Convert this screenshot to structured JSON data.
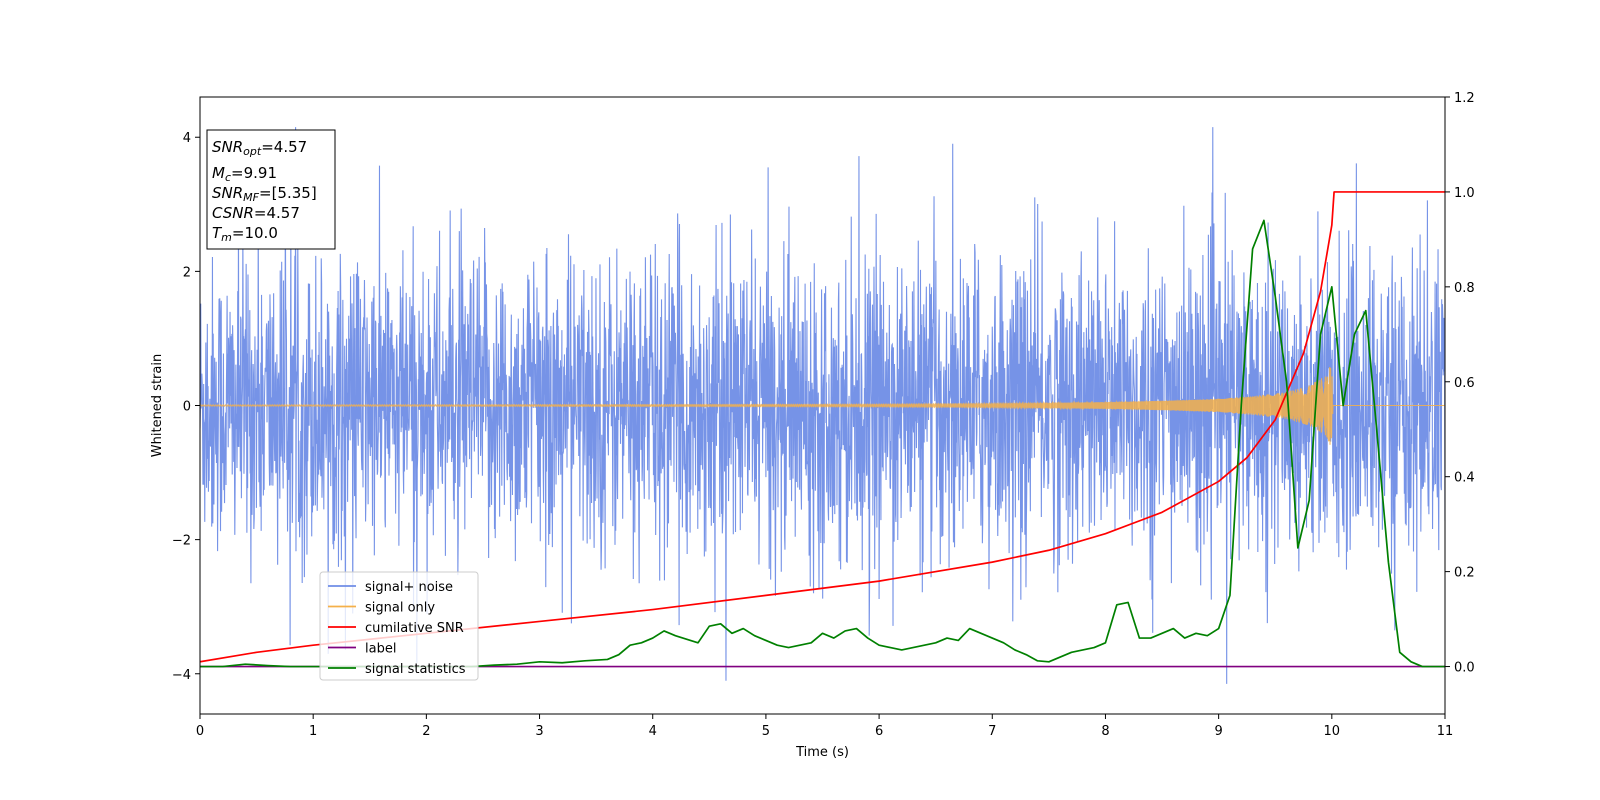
{
  "chart_data": {
    "type": "line",
    "xlabel": "Time (s)",
    "ylabel": "Whitened strain",
    "xlim": [
      0,
      11
    ],
    "ylim": [
      -4.6,
      4.6
    ],
    "y2lim": [
      -0.1,
      1.2
    ],
    "grid": false,
    "x_ticks": [
      "0",
      "1",
      "2",
      "3",
      "4",
      "5",
      "6",
      "7",
      "8",
      "9",
      "10",
      "11"
    ],
    "y_ticks": [
      "−4",
      "−2",
      "0",
      "2",
      "4"
    ],
    "y2_ticks": [
      "0.0",
      "0.2",
      "0.4",
      "0.6",
      "0.8",
      "1.0",
      "1.2"
    ],
    "legend_position": "lower-left",
    "annotation": {
      "lines": [
        {
          "sym": "SNR",
          "sub": "opt",
          "val": "=4.57"
        },
        {
          "sym": "M",
          "sub": "c",
          "val": "=9.91"
        },
        {
          "sym": "SNR",
          "sub": "MF",
          "val": "=[5.35]"
        },
        {
          "sym": "CSNR",
          "sub": "",
          "val": "=4.57"
        },
        {
          "sym": "T",
          "sub": "m",
          "val": "=10.0"
        }
      ]
    },
    "series": [
      {
        "name": "signal+ noise",
        "axis": "left",
        "color": "#6f8de6",
        "kind": "noise",
        "envelope": {
          "x": [
            0,
            11
          ],
          "typical_amplitude": 2.6,
          "min": -4.15,
          "max": 4.15
        }
      },
      {
        "name": "signal only",
        "axis": "left",
        "color": "#f5b04a",
        "kind": "chirp",
        "amplitude_envelope": {
          "x": [
            0,
            2,
            4,
            6,
            7,
            8,
            8.5,
            9,
            9.3,
            9.6,
            9.8,
            9.95,
            10.0,
            10.01
          ],
          "y": [
            0.01,
            0.012,
            0.015,
            0.02,
            0.03,
            0.05,
            0.07,
            0.1,
            0.14,
            0.2,
            0.3,
            0.45,
            0.65,
            0
          ]
        }
      },
      {
        "name": "cumilative SNR",
        "axis": "right",
        "color": "#ff0000",
        "x": [
          0,
          0.5,
          1,
          2,
          3,
          4,
          5,
          6,
          7,
          7.5,
          8,
          8.5,
          9,
          9.25,
          9.5,
          9.75,
          9.9,
          10.0,
          10.02,
          11
        ],
        "y": [
          0.01,
          0.03,
          0.045,
          0.07,
          0.095,
          0.12,
          0.15,
          0.18,
          0.22,
          0.245,
          0.28,
          0.325,
          0.39,
          0.44,
          0.52,
          0.66,
          0.79,
          0.93,
          1.0,
          1.0
        ]
      },
      {
        "name": "label",
        "axis": "right",
        "color": "#800080",
        "x": [
          0,
          11
        ],
        "y": [
          0,
          0
        ]
      },
      {
        "name": "signal statistics",
        "axis": "right",
        "color": "#008000",
        "x": [
          0,
          0.2,
          0.4,
          0.6,
          0.8,
          1.0,
          1.2,
          1.5,
          1.8,
          2.0,
          2.2,
          2.4,
          2.6,
          2.8,
          3.0,
          3.2,
          3.4,
          3.6,
          3.7,
          3.8,
          3.9,
          4.0,
          4.1,
          4.2,
          4.4,
          4.5,
          4.6,
          4.7,
          4.8,
          4.9,
          5.0,
          5.1,
          5.2,
          5.3,
          5.4,
          5.5,
          5.6,
          5.7,
          5.8,
          5.9,
          6.0,
          6.1,
          6.2,
          6.3,
          6.4,
          6.5,
          6.6,
          6.7,
          6.8,
          6.9,
          7.0,
          7.1,
          7.2,
          7.3,
          7.4,
          7.5,
          7.6,
          7.7,
          7.8,
          7.9,
          8.0,
          8.1,
          8.2,
          8.3,
          8.4,
          8.5,
          8.6,
          8.7,
          8.8,
          8.9,
          9.0,
          9.1,
          9.2,
          9.3,
          9.4,
          9.5,
          9.6,
          9.7,
          9.8,
          9.9,
          10.0,
          10.1,
          10.2,
          10.3,
          10.4,
          10.5,
          10.6,
          10.7,
          10.8,
          10.9,
          11.0
        ],
        "y": [
          0.0,
          0.0,
          0.005,
          0.002,
          0.0,
          0.0,
          0.0,
          0.0,
          0.0,
          0.0,
          0.0,
          0.0,
          0.003,
          0.005,
          0.01,
          0.008,
          0.012,
          0.015,
          0.025,
          0.045,
          0.05,
          0.06,
          0.075,
          0.065,
          0.05,
          0.085,
          0.09,
          0.07,
          0.08,
          0.065,
          0.055,
          0.045,
          0.04,
          0.045,
          0.05,
          0.07,
          0.06,
          0.075,
          0.08,
          0.06,
          0.045,
          0.04,
          0.035,
          0.04,
          0.045,
          0.05,
          0.06,
          0.055,
          0.08,
          0.07,
          0.06,
          0.05,
          0.035,
          0.025,
          0.012,
          0.01,
          0.02,
          0.03,
          0.035,
          0.04,
          0.05,
          0.13,
          0.135,
          0.06,
          0.06,
          0.07,
          0.08,
          0.06,
          0.07,
          0.065,
          0.08,
          0.15,
          0.55,
          0.88,
          0.94,
          0.78,
          0.6,
          0.25,
          0.35,
          0.7,
          0.8,
          0.55,
          0.7,
          0.75,
          0.49,
          0.22,
          0.03,
          0.01,
          0.0,
          0.0,
          0.0
        ]
      }
    ]
  }
}
